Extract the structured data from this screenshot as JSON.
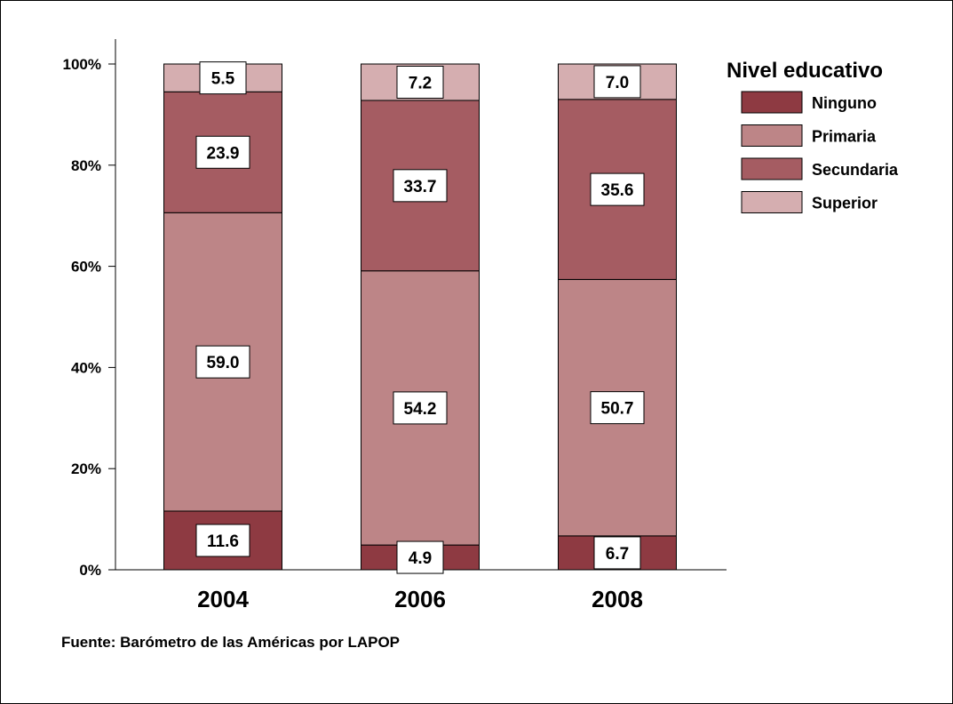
{
  "chart_data": {
    "type": "bar",
    "stacked": true,
    "categories": [
      "2004",
      "2006",
      "2008"
    ],
    "series": [
      {
        "name": "Ninguno",
        "values": [
          11.6,
          4.9,
          6.7
        ],
        "color": "#8e3a42"
      },
      {
        "name": "Primaria",
        "values": [
          59.0,
          54.2,
          50.7
        ],
        "color": "#bd8587"
      },
      {
        "name": "Secundaria",
        "values": [
          23.9,
          33.7,
          35.6
        ],
        "color": "#a55c62"
      },
      {
        "name": "Superior",
        "values": [
          5.5,
          7.2,
          7.0
        ],
        "color": "#d5aeb0"
      }
    ],
    "data_labels": [
      [
        "11.6",
        "4.9",
        "6.7"
      ],
      [
        "59.0",
        "54.2",
        "50.7"
      ],
      [
        "23.9",
        "33.7",
        "35.6"
      ],
      [
        "5.5",
        "7.2",
        "7.0"
      ]
    ],
    "yticks": [
      "0%",
      "20%",
      "40%",
      "60%",
      "80%",
      "100%"
    ],
    "ylim": [
      0,
      100
    ],
    "legend": {
      "title": "Nivel educativo",
      "position": "top-right"
    },
    "xlabel": "",
    "ylabel": "",
    "grid": false,
    "source": "Fuente: Barómetro de las Américas por LAPOP"
  }
}
